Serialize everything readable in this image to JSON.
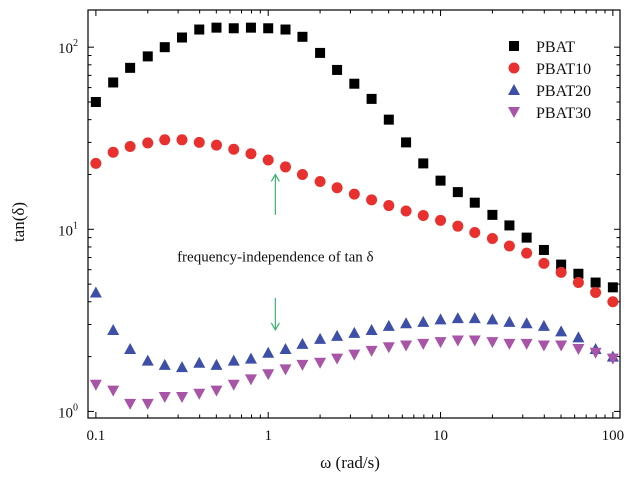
{
  "chart_data": {
    "type": "scatter",
    "xlabel": "ω (rad/s)",
    "ylabel": "tan(δ)",
    "x_scale": "log",
    "y_scale": "log",
    "xlim": [
      0.09,
      110
    ],
    "ylim": [
      0.92,
      160
    ],
    "x_ticks": [
      {
        "value": 0.1,
        "label": "0.1"
      },
      {
        "value": 1,
        "label": "1"
      },
      {
        "value": 10,
        "label": "10"
      },
      {
        "value": 100,
        "label": "100"
      }
    ],
    "y_ticks": [
      {
        "value": 1,
        "base": "10",
        "exp": "0"
      },
      {
        "value": 10,
        "base": "10",
        "exp": "1"
      },
      {
        "value": 100,
        "base": "10",
        "exp": "2"
      }
    ],
    "legend_position": "top-right",
    "x": [
      0.1,
      0.126,
      0.158,
      0.2,
      0.251,
      0.316,
      0.398,
      0.501,
      0.631,
      0.794,
      1.0,
      1.26,
      1.58,
      2.0,
      2.51,
      3.16,
      3.98,
      5.01,
      6.31,
      7.94,
      10.0,
      12.6,
      15.8,
      20.0,
      25.1,
      31.6,
      39.8,
      50.1,
      63.1,
      79.4,
      100
    ],
    "series": [
      {
        "name": "PBAT",
        "marker": "square",
        "color": "#000000",
        "values": [
          50,
          64,
          77,
          89,
          100,
          113,
          125,
          128,
          127,
          128,
          127,
          125,
          114,
          93,
          75,
          63,
          52,
          40,
          30,
          23,
          18.5,
          16,
          14,
          12,
          10.5,
          9,
          7.7,
          6.4,
          5.7,
          5.1,
          4.8
        ]
      },
      {
        "name": "PBAT10",
        "marker": "circle",
        "color": "#e8312f",
        "values": [
          23,
          26.5,
          28.5,
          29.8,
          31,
          31,
          30,
          29,
          27.5,
          26,
          24,
          22,
          20,
          18.3,
          16.9,
          15.6,
          14.5,
          13.5,
          12.6,
          11.9,
          11.2,
          10.4,
          9.6,
          8.9,
          8.1,
          7.4,
          6.5,
          5.8,
          5.1,
          4.5,
          4.0
        ]
      },
      {
        "name": "PBAT20",
        "marker": "triangle-up",
        "color": "#3e4fa8",
        "values": [
          4.5,
          2.8,
          2.2,
          1.9,
          1.8,
          1.75,
          1.85,
          1.8,
          1.9,
          1.95,
          2.1,
          2.2,
          2.35,
          2.5,
          2.6,
          2.7,
          2.8,
          2.95,
          3.05,
          3.1,
          3.2,
          3.25,
          3.25,
          3.2,
          3.1,
          3.05,
          2.95,
          2.75,
          2.55,
          2.2,
          2.0
        ]
      },
      {
        "name": "PBAT30",
        "marker": "triangle-down",
        "color": "#a855a8",
        "values": [
          1.4,
          1.3,
          1.1,
          1.1,
          1.2,
          1.2,
          1.25,
          1.3,
          1.4,
          1.5,
          1.6,
          1.7,
          1.8,
          1.85,
          1.95,
          2.05,
          2.15,
          2.25,
          2.3,
          2.35,
          2.4,
          2.45,
          2.45,
          2.4,
          2.35,
          2.35,
          2.3,
          2.3,
          2.2,
          2.1,
          1.95
        ]
      }
    ],
    "annotation": {
      "text": "frequency-independence of tan δ",
      "arrow_color": "#3cb371",
      "arrow_x": 1.1,
      "arrow_up_from": 12,
      "arrow_up_to": 20,
      "arrow_down_from": 4.2,
      "arrow_down_to": 2.8
    }
  }
}
